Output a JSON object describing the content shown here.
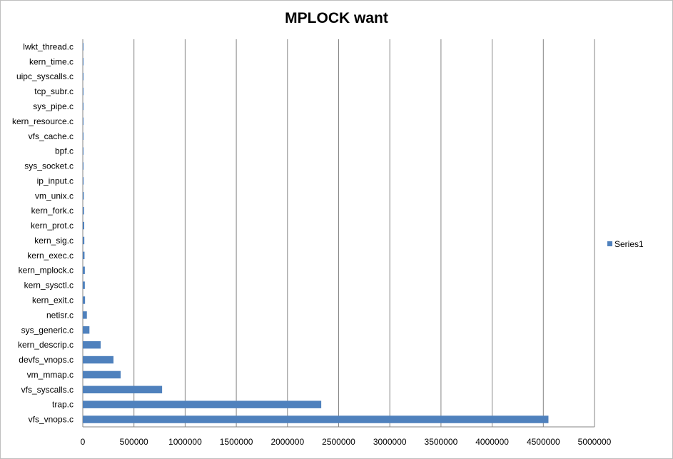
{
  "chart_data": {
    "type": "bar",
    "orientation": "horizontal",
    "title": "MPLOCK want",
    "xlabel": "",
    "ylabel": "",
    "xlim": [
      0,
      5000000
    ],
    "x_ticks": [
      "0",
      "500000",
      "1000000",
      "1500000",
      "2000000",
      "2500000",
      "3000000",
      "3500000",
      "4000000",
      "4500000",
      "5000000"
    ],
    "grid": "vertical major gridlines",
    "legend_position": "right",
    "categories": [
      "vfs_vnops.c",
      "trap.c",
      "vfs_syscalls.c",
      "vm_mmap.c",
      "devfs_vnops.c",
      "kern_descrip.c",
      "sys_generic.c",
      "netisr.c",
      "kern_exit.c",
      "kern_sysctl.c",
      "kern_mplock.c",
      "kern_exec.c",
      "kern_sig.c",
      "kern_prot.c",
      "kern_fork.c",
      "vm_unix.c",
      "ip_input.c",
      "sys_socket.c",
      "bpf.c",
      "vfs_cache.c",
      "kern_resource.c",
      "sys_pipe.c",
      "tcp_subr.c",
      "uipc_syscalls.c",
      "kern_time.c",
      "lwkt_thread.c"
    ],
    "series": [
      {
        "name": "Series1",
        "color": "#4f81bd",
        "values": [
          4550000,
          2330000,
          775000,
          370000,
          300000,
          175000,
          65000,
          40000,
          22000,
          20000,
          20000,
          17000,
          15000,
          14000,
          12000,
          10000,
          8000,
          7000,
          5000,
          3000,
          2500,
          2000,
          1500,
          1000,
          800,
          500
        ]
      }
    ]
  }
}
